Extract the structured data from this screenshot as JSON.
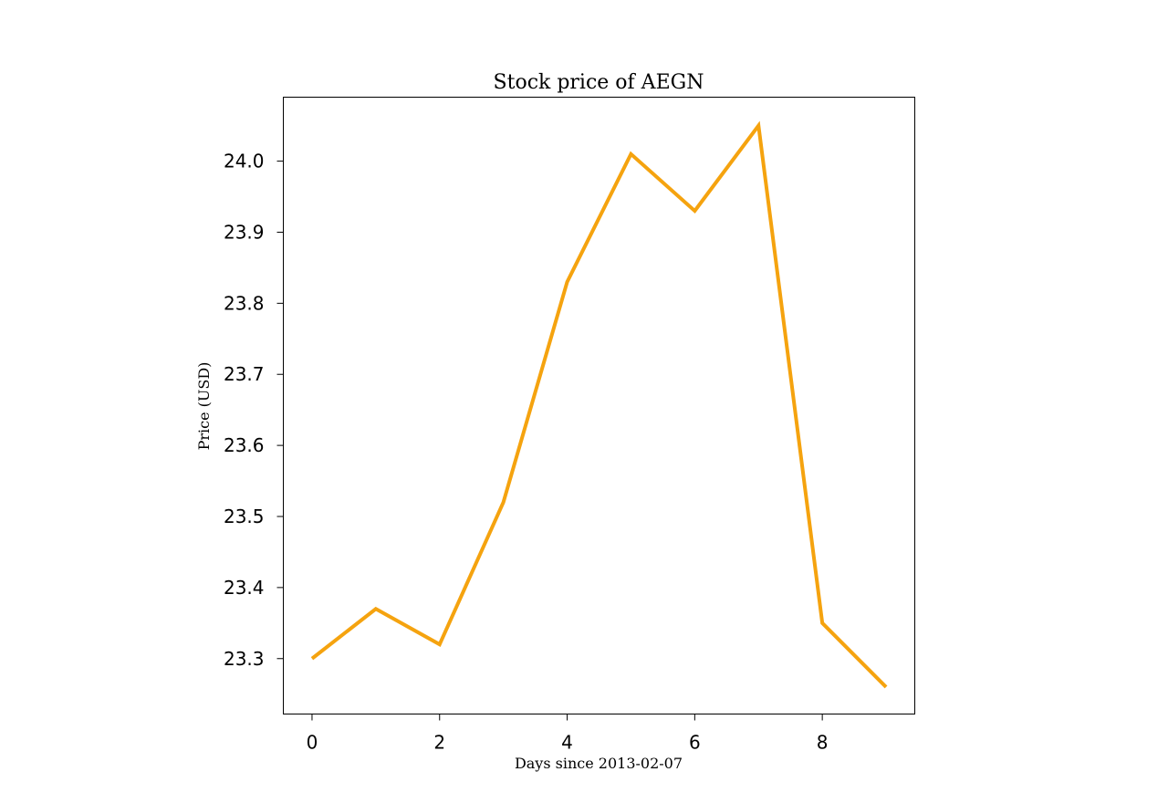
{
  "chart_data": {
    "type": "line",
    "title": "Stock price of AEGN",
    "xlabel": "Days since 2013-02-07",
    "ylabel": "Price (USD)",
    "x": [
      0,
      1,
      2,
      3,
      4,
      5,
      6,
      7,
      8,
      9
    ],
    "series": [
      {
        "values": [
          23.3,
          23.37,
          23.32,
          23.52,
          23.83,
          24.01,
          23.93,
          24.05,
          23.35,
          23.26
        ],
        "color": "#f5a30f"
      }
    ],
    "xlim": [
      -0.45,
      9.45
    ],
    "ylim": [
      23.222,
      24.09
    ],
    "xticks": [
      0,
      2,
      4,
      6,
      8
    ],
    "xtick_labels": [
      "0",
      "2",
      "4",
      "6",
      "8"
    ],
    "yticks": [
      23.3,
      23.4,
      23.5,
      23.6,
      23.7,
      23.8,
      23.9,
      24.0
    ],
    "ytick_labels": [
      "23.3",
      "23.4",
      "23.5",
      "23.6",
      "23.7",
      "23.8",
      "23.9",
      "24.0"
    ],
    "grid": false,
    "legend": false
  }
}
